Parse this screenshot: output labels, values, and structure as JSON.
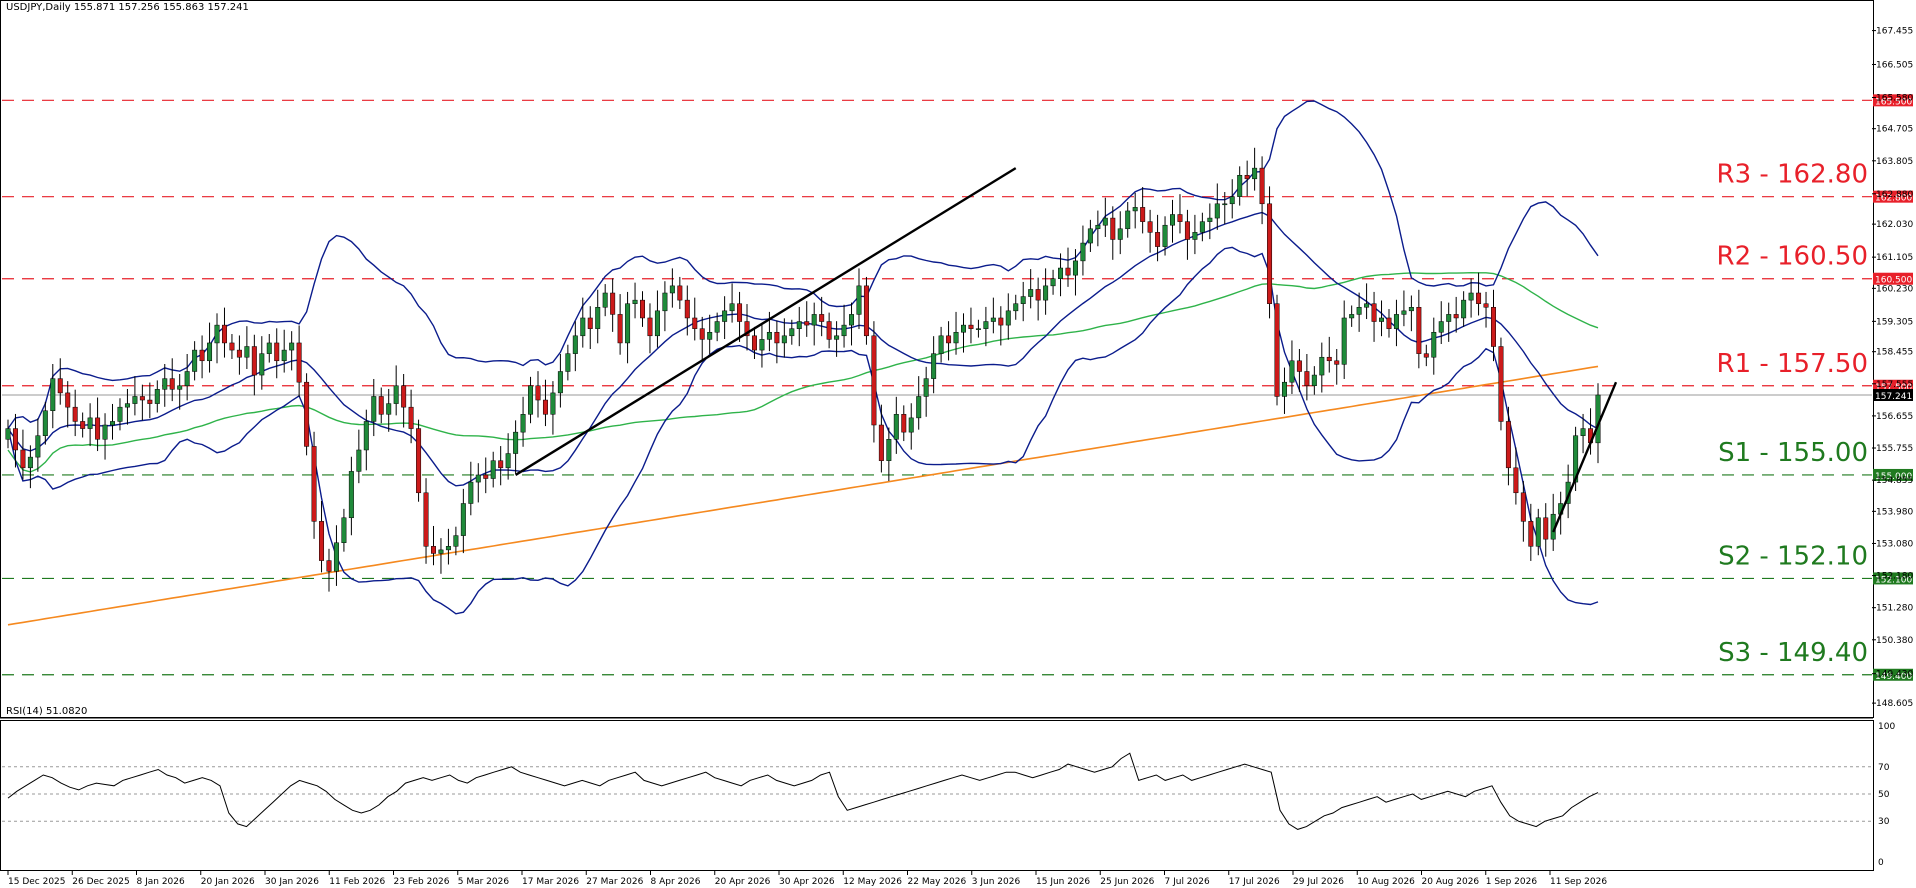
{
  "header": {
    "symbol_info": "USDJPY,Daily  155.871 157.256 155.863 157.241"
  },
  "rsi_header": {
    "label": "RSI(14) 51.0820"
  },
  "colors": {
    "resistance": "#e8202a",
    "support": "#1f7a1f",
    "bollinger": "#0b1c8c",
    "ma_green": "#2fb34a",
    "ma_orange": "#f5891f",
    "trendline": "#000000",
    "bull_candle": "#1f8a3a",
    "bear_candle": "#cc1a1a",
    "rsi_line": "#000000"
  },
  "chart_data": [
    {
      "type": "candlestick",
      "title": "USDJPY,Daily",
      "ohlc_latest": {
        "open": 155.871,
        "high": 157.256,
        "low": 155.863,
        "close": 157.241
      },
      "ylim": [
        148.3,
        168.2
      ],
      "y_ticks": [
        "167.455",
        "166.505",
        "165.580",
        "164.705",
        "163.805",
        "162.880",
        "162.030",
        "161.105",
        "160.230",
        "159.305",
        "158.455",
        "157.555",
        "156.655",
        "155.755",
        "154.855",
        "153.980",
        "153.080",
        "152.180",
        "151.280",
        "150.380",
        "149.430",
        "148.605"
      ],
      "x_labels": [
        "15 Dec 2025",
        "26 Dec 2025",
        "8 Jan 2026",
        "20 Jan 2026",
        "30 Jan 2026",
        "11 Feb 2026",
        "23 Feb 2026",
        "5 Mar 2026",
        "17 Mar 2026",
        "27 Mar 2026",
        "8 Apr 2026",
        "20 Apr 2026",
        "30 Apr 2026",
        "12 May 2026",
        "22 May 2026",
        "3 Jun 2026",
        "15 Jun 2026",
        "25 Jun 2026",
        "7 Jul 2026",
        "17 Jul 2026",
        "29 Jul 2026",
        "10 Aug 2026",
        "20 Aug 2026",
        "1 Sep 2026",
        "11 Sep 2026"
      ],
      "last_price_tag": "157.241",
      "levels": [
        {
          "name": "R3 - 162.80",
          "value": 162.8,
          "tag": "162.800",
          "kind": "resistance"
        },
        {
          "name": "R2 - 160.50",
          "value": 160.5,
          "tag": "160.500",
          "kind": "resistance"
        },
        {
          "name": "R1 - 157.50",
          "value": 157.5,
          "tag": "157.500",
          "kind": "resistance"
        },
        {
          "name": "",
          "value": 165.5,
          "tag": "165.500",
          "kind": "resistance"
        },
        {
          "name": "S1 - 155.00",
          "value": 155.0,
          "tag": "155.000",
          "kind": "support"
        },
        {
          "name": "S2 - 152.10",
          "value": 152.1,
          "tag": "152.100",
          "kind": "support"
        },
        {
          "name": "S3 - 149.40",
          "value": 149.4,
          "tag": "149.400",
          "kind": "support"
        }
      ],
      "close_series": [
        156.3,
        155.7,
        155.2,
        155.5,
        156.1,
        156.8,
        157.7,
        157.3,
        156.9,
        156.5,
        156.3,
        156.6,
        156.0,
        156.4,
        156.5,
        156.9,
        157.0,
        157.2,
        157.1,
        157.0,
        157.4,
        157.7,
        157.4,
        157.5,
        157.9,
        158.5,
        158.2,
        158.7,
        159.2,
        158.7,
        158.5,
        158.3,
        158.6,
        157.8,
        158.4,
        158.7,
        158.2,
        158.5,
        158.7,
        157.6,
        155.8,
        153.7,
        152.6,
        152.3,
        153.1,
        153.8,
        155.1,
        155.7,
        156.5,
        157.2,
        156.7,
        157.0,
        157.5,
        156.9,
        156.3,
        154.5,
        153.0,
        152.8,
        152.9,
        153.0,
        153.3,
        154.2,
        154.8,
        155.0,
        154.9,
        155.4,
        155.2,
        155.6,
        156.2,
        156.7,
        157.5,
        157.1,
        156.7,
        157.3,
        157.9,
        158.4,
        158.9,
        159.4,
        159.1,
        159.7,
        160.1,
        159.5,
        158.7,
        159.8,
        159.9,
        159.4,
        158.9,
        159.6,
        160.1,
        160.3,
        159.9,
        159.4,
        159.1,
        158.8,
        159.0,
        159.3,
        159.6,
        159.8,
        159.3,
        158.9,
        158.5,
        158.8,
        159.0,
        158.7,
        158.9,
        159.1,
        159.3,
        159.2,
        159.5,
        159.3,
        158.8,
        158.9,
        159.2,
        159.5,
        160.3,
        158.9,
        156.4,
        155.4,
        156.0,
        156.7,
        156.2,
        156.6,
        157.2,
        157.7,
        158.4,
        158.9,
        158.7,
        159.0,
        159.2,
        159.1,
        159.1,
        159.3,
        159.4,
        159.2,
        159.6,
        159.8,
        160.0,
        160.2,
        159.9,
        160.3,
        160.5,
        160.8,
        160.6,
        161.0,
        161.5,
        161.9,
        162.0,
        162.2,
        161.6,
        161.9,
        162.4,
        162.5,
        162.1,
        161.8,
        161.4,
        162.0,
        162.3,
        162.1,
        161.6,
        161.8,
        162.1,
        162.2,
        162.6,
        162.6,
        162.8,
        163.4,
        163.3,
        163.6,
        162.6,
        159.8,
        157.2,
        157.6,
        158.2,
        157.9,
        157.5,
        157.8,
        158.3,
        158.2,
        158.1,
        159.4,
        159.5,
        159.7,
        159.8,
        159.3,
        159.4,
        159.1,
        159.5,
        159.6,
        159.7,
        158.4,
        158.3,
        159.0,
        159.3,
        159.5,
        159.4,
        159.9,
        160.1,
        159.8,
        159.7,
        158.6,
        156.5,
        155.2,
        154.5,
        153.7,
        153.0,
        153.8,
        153.2,
        153.9,
        154.2,
        154.8,
        156.1,
        156.3,
        155.9,
        157.241
      ],
      "rsi": {
        "ylim": [
          0,
          100
        ],
        "levels": [
          70,
          50,
          30
        ],
        "y_ticks": [
          "100",
          "70",
          "50",
          "30",
          "0"
        ],
        "series": [
          47,
          52,
          56,
          60,
          64,
          62,
          58,
          55,
          53,
          56,
          58,
          57,
          56,
          60,
          62,
          64,
          66,
          68,
          64,
          62,
          58,
          60,
          62,
          60,
          56,
          36,
          28,
          26,
          32,
          38,
          44,
          50,
          56,
          60,
          58,
          56,
          52,
          46,
          42,
          38,
          36,
          38,
          42,
          48,
          52,
          58,
          60,
          62,
          60,
          62,
          64,
          60,
          58,
          62,
          64,
          66,
          68,
          70,
          66,
          64,
          62,
          60,
          58,
          56,
          58,
          60,
          58,
          56,
          60,
          62,
          64,
          66,
          60,
          58,
          56,
          58,
          60,
          62,
          64,
          66,
          62,
          60,
          58,
          56,
          60,
          62,
          64,
          60,
          58,
          56,
          58,
          60,
          64,
          66,
          48,
          38,
          40,
          42,
          44,
          46,
          48,
          50,
          52,
          54,
          56,
          58,
          60,
          62,
          64,
          62,
          60,
          62,
          64,
          66,
          66,
          64,
          62,
          64,
          66,
          68,
          72,
          70,
          68,
          66,
          68,
          70,
          76,
          80,
          60,
          62,
          64,
          60,
          62,
          64,
          60,
          62,
          64,
          66,
          68,
          70,
          72,
          70,
          68,
          66,
          38,
          28,
          24,
          26,
          30,
          34,
          36,
          40,
          42,
          44,
          46,
          48,
          44,
          46,
          48,
          50,
          46,
          48,
          50,
          52,
          50,
          48,
          52,
          54,
          56,
          44,
          34,
          30,
          28,
          26,
          30,
          32,
          34,
          40,
          44,
          48,
          51
        ]
      }
    }
  ]
}
